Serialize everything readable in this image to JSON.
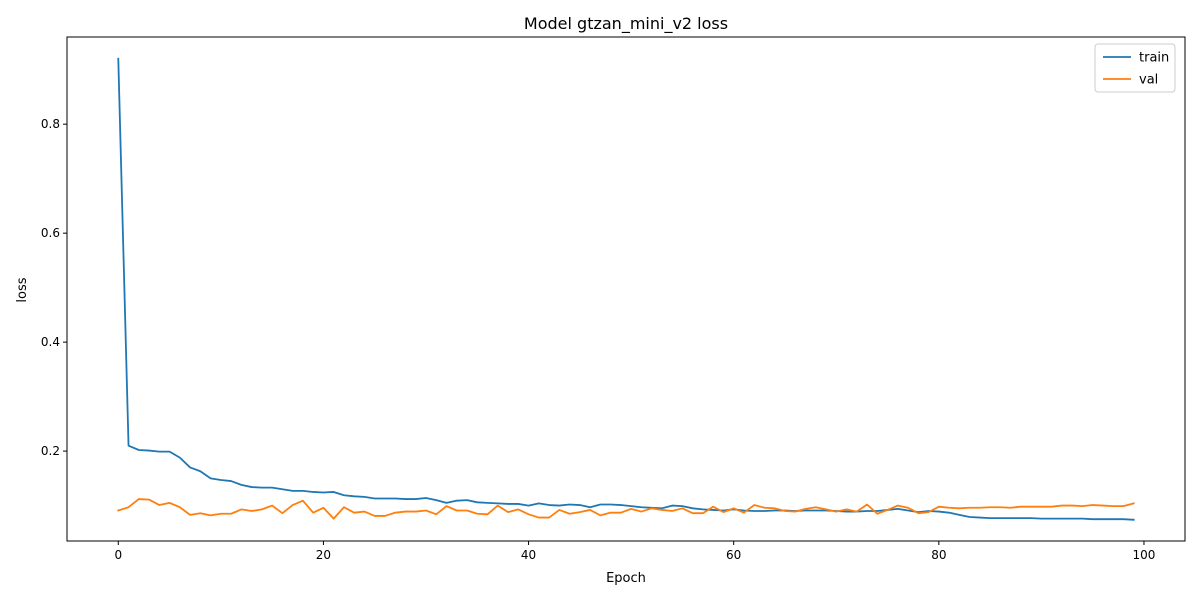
{
  "chart_data": {
    "type": "line",
    "title": "Model gtzan_mini_v2 loss",
    "xlabel": "Epoch",
    "ylabel": "loss",
    "xlim": [
      -5,
      104
    ],
    "ylim": [
      0.035,
      0.96
    ],
    "xticks": [
      0,
      20,
      40,
      60,
      80,
      100
    ],
    "yticks": [
      0.2,
      0.4,
      0.6,
      0.8
    ],
    "xtick_labels": [
      "0",
      "20",
      "40",
      "60",
      "80",
      "100"
    ],
    "ytick_labels": [
      "0.2",
      "0.4",
      "0.6",
      "0.8"
    ],
    "grid": false,
    "legend_position": "top-right",
    "x": [
      0,
      1,
      2,
      3,
      4,
      5,
      6,
      7,
      8,
      9,
      10,
      11,
      12,
      13,
      14,
      15,
      16,
      17,
      18,
      19,
      20,
      21,
      22,
      23,
      24,
      25,
      26,
      27,
      28,
      29,
      30,
      31,
      32,
      33,
      34,
      35,
      36,
      37,
      38,
      39,
      40,
      41,
      42,
      43,
      44,
      45,
      46,
      47,
      48,
      49,
      50,
      51,
      52,
      53,
      54,
      55,
      56,
      57,
      58,
      59,
      60,
      61,
      62,
      63,
      64,
      65,
      66,
      67,
      68,
      69,
      70,
      71,
      72,
      73,
      74,
      75,
      76,
      77,
      78,
      79,
      80,
      81,
      82,
      83,
      84,
      85,
      86,
      87,
      88,
      89,
      90,
      91,
      92,
      93,
      94,
      95,
      96,
      97,
      98,
      99
    ],
    "series": [
      {
        "name": "train",
        "color": "#1f77b4",
        "values": [
          0.92,
          0.21,
          0.202,
          0.201,
          0.199,
          0.199,
          0.188,
          0.17,
          0.163,
          0.15,
          0.147,
          0.145,
          0.138,
          0.134,
          0.133,
          0.133,
          0.13,
          0.127,
          0.127,
          0.125,
          0.124,
          0.125,
          0.119,
          0.117,
          0.116,
          0.113,
          0.113,
          0.113,
          0.112,
          0.112,
          0.114,
          0.11,
          0.105,
          0.109,
          0.11,
          0.106,
          0.105,
          0.104,
          0.103,
          0.103,
          0.1,
          0.104,
          0.101,
          0.1,
          0.102,
          0.101,
          0.097,
          0.102,
          0.102,
          0.101,
          0.099,
          0.097,
          0.096,
          0.095,
          0.1,
          0.099,
          0.095,
          0.093,
          0.092,
          0.091,
          0.093,
          0.091,
          0.09,
          0.09,
          0.091,
          0.091,
          0.09,
          0.091,
          0.091,
          0.091,
          0.09,
          0.089,
          0.089,
          0.09,
          0.09,
          0.092,
          0.094,
          0.091,
          0.088,
          0.09,
          0.089,
          0.087,
          0.083,
          0.079,
          0.078,
          0.077,
          0.077,
          0.077,
          0.077,
          0.077,
          0.076,
          0.076,
          0.076,
          0.076,
          0.076,
          0.075,
          0.075,
          0.075,
          0.075,
          0.074
        ]
      },
      {
        "name": "val",
        "color": "#ff7f0e",
        "values": [
          0.091,
          0.097,
          0.112,
          0.111,
          0.101,
          0.105,
          0.097,
          0.083,
          0.086,
          0.082,
          0.085,
          0.085,
          0.093,
          0.09,
          0.093,
          0.1,
          0.086,
          0.101,
          0.109,
          0.087,
          0.096,
          0.076,
          0.097,
          0.087,
          0.089,
          0.081,
          0.081,
          0.087,
          0.089,
          0.089,
          0.091,
          0.084,
          0.099,
          0.091,
          0.091,
          0.085,
          0.084,
          0.1,
          0.088,
          0.093,
          0.084,
          0.078,
          0.078,
          0.092,
          0.085,
          0.088,
          0.092,
          0.082,
          0.087,
          0.087,
          0.094,
          0.089,
          0.095,
          0.092,
          0.09,
          0.095,
          0.086,
          0.086,
          0.098,
          0.088,
          0.095,
          0.087,
          0.101,
          0.096,
          0.095,
          0.09,
          0.089,
          0.094,
          0.097,
          0.093,
          0.089,
          0.093,
          0.089,
          0.102,
          0.085,
          0.092,
          0.1,
          0.096,
          0.086,
          0.088,
          0.098,
          0.096,
          0.095,
          0.096,
          0.096,
          0.097,
          0.097,
          0.096,
          0.098,
          0.098,
          0.098,
          0.098,
          0.1,
          0.1,
          0.099,
          0.101,
          0.1,
          0.099,
          0.099,
          0.104
        ]
      }
    ]
  }
}
